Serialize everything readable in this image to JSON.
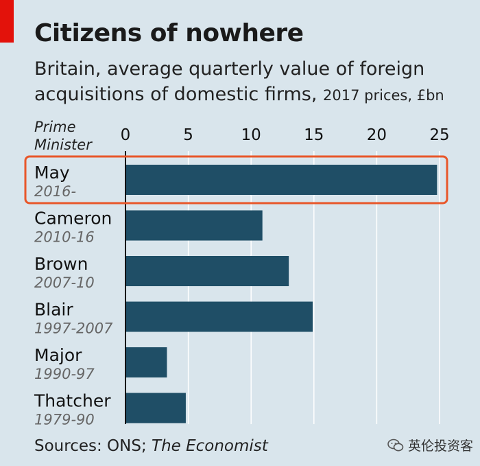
{
  "header": {
    "title": "Citizens of nowhere",
    "subtitle": "Britain, average quarterly value of foreign acquisitions of domestic firms,",
    "units": "2017 prices, £bn"
  },
  "footer": {
    "source_prefix": "Sources: ONS;",
    "source_italic": "The Economist",
    "watermark": "英伦投资客"
  },
  "colors": {
    "bar": "#1f4e66",
    "highlight": "#e8572a",
    "grid": "#ffffff",
    "accent": "#e3120b"
  },
  "chart_data": {
    "type": "bar",
    "orientation": "horizontal",
    "title": "Citizens of nowhere",
    "subtitle": "Britain, average quarterly value of foreign acquisitions of domestic firms, 2017 prices, £bn",
    "axis_label": "Prime Minister",
    "categories": [
      "May",
      "Cameron",
      "Brown",
      "Blair",
      "Major",
      "Thatcher"
    ],
    "periods": [
      "2016-",
      "2010-16",
      "2007-10",
      "1997-2007",
      "1990-97",
      "1979-90"
    ],
    "values": [
      24.8,
      10.9,
      13.0,
      14.9,
      3.3,
      4.8
    ],
    "xlim": [
      0,
      25
    ],
    "ticks": [
      "0",
      "5",
      "10",
      "15",
      "20",
      "25"
    ],
    "highlighted": "May",
    "grid": true
  }
}
